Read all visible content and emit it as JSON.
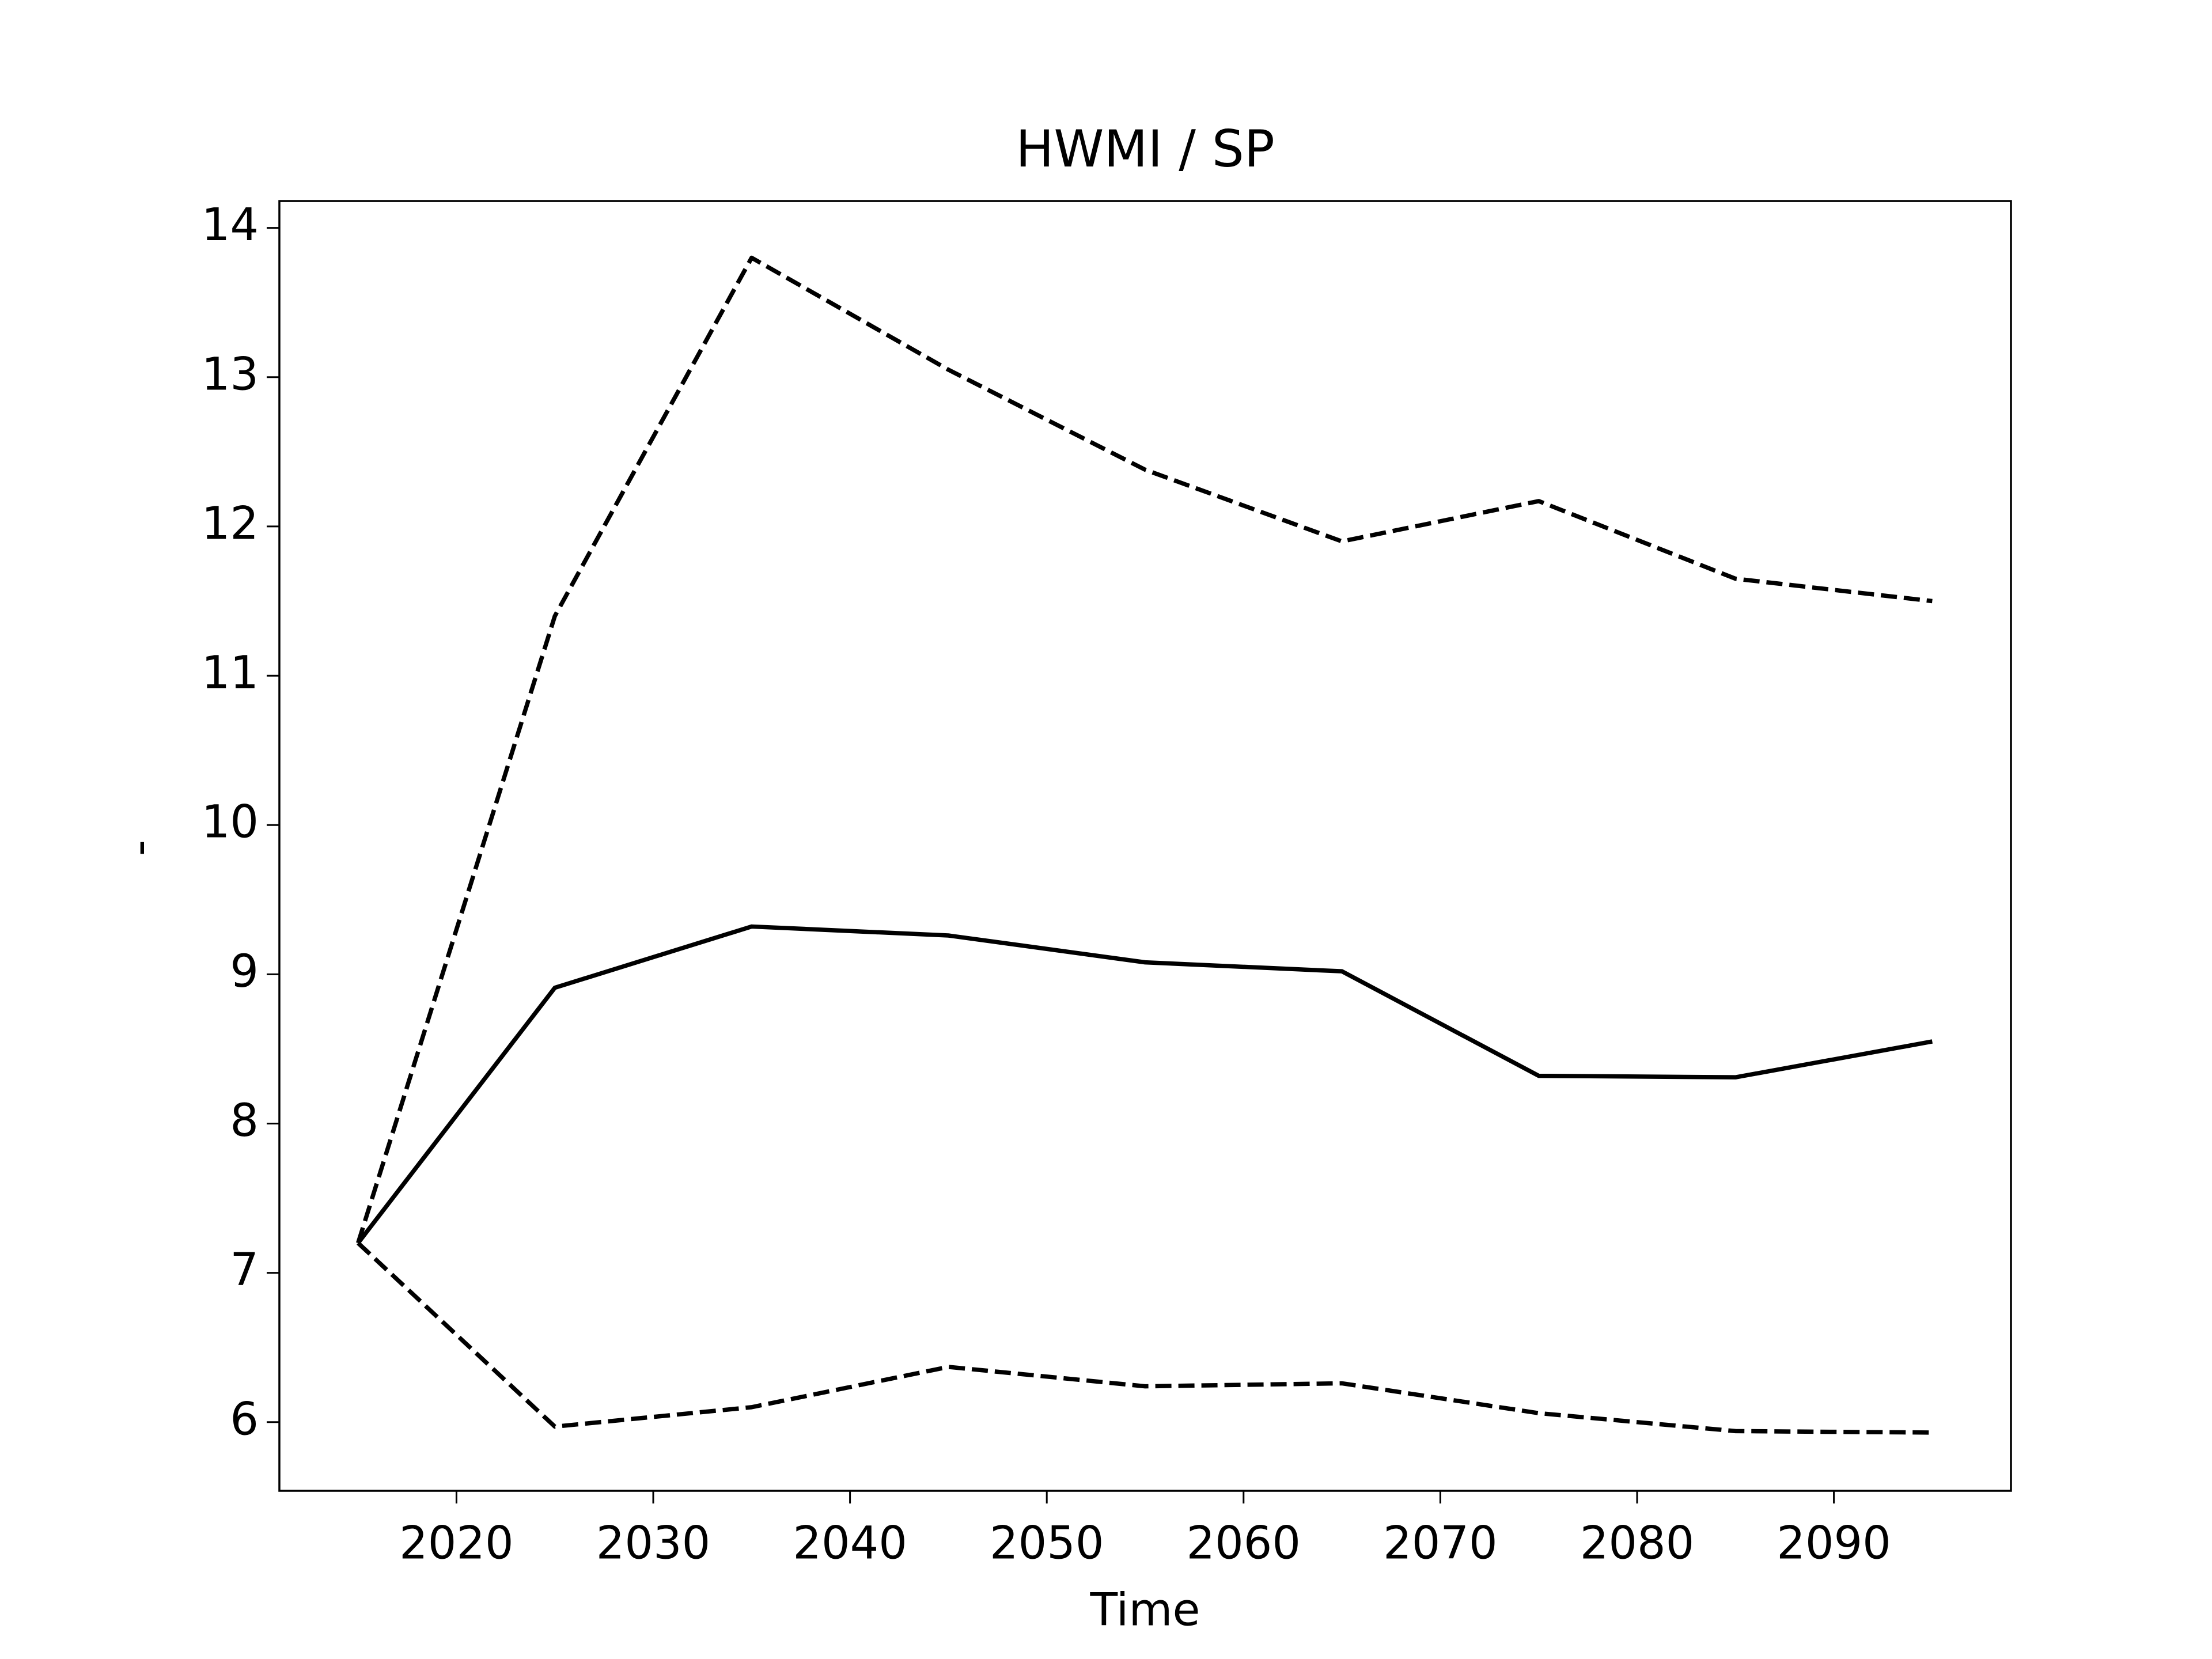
{
  "chart_data": {
    "type": "line",
    "title": "HWMI / SP",
    "xlabel": "Time",
    "ylabel": "-",
    "x": [
      2015,
      2025,
      2035,
      2045,
      2055,
      2065,
      2075,
      2085,
      2095
    ],
    "series": [
      {
        "color": "#000000",
        "linestyle": "solid",
        "values": [
          7.2,
          8.91,
          9.32,
          9.26,
          9.08,
          9.02,
          8.32,
          8.31,
          8.55
        ]
      },
      {
        "color": "#000000",
        "linestyle": "dashed",
        "values": [
          7.2,
          11.4,
          13.8,
          13.05,
          12.38,
          11.9,
          12.17,
          11.65,
          11.5
        ]
      },
      {
        "color": "#000000",
        "linestyle": "dashed",
        "values": [
          7.2,
          5.97,
          6.1,
          6.37,
          6.24,
          6.26,
          6.06,
          5.94,
          5.93
        ]
      }
    ],
    "xlim": [
      2011,
      2099
    ],
    "xticks": [
      2020,
      2030,
      2040,
      2050,
      2060,
      2070,
      2080,
      2090
    ],
    "ylim": [
      5.54,
      14.18
    ],
    "yticks": [
      6,
      7,
      8,
      9,
      10,
      11,
      12,
      13,
      14
    ],
    "grid": false
  }
}
